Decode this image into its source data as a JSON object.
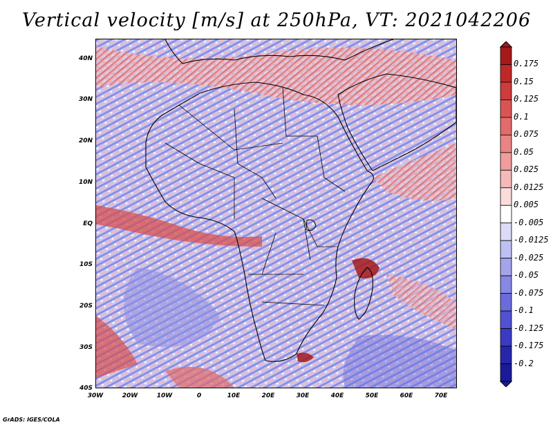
{
  "title": "Vertical velocity [m/s] at 250hPa, VT: 2021042206",
  "credit": "GrADS: IGES/COLA",
  "map": {
    "lat_labels": [
      "40N",
      "30N",
      "20N",
      "10N",
      "EQ",
      "10S",
      "20S",
      "30S",
      "40S"
    ],
    "lon_labels": [
      "30W",
      "20W",
      "10W",
      "0",
      "10E",
      "20E",
      "30E",
      "40E",
      "50E",
      "60E",
      "70E"
    ]
  },
  "colorbar": {
    "labels": [
      "0.175",
      "0.15",
      "0.125",
      "0.1",
      "0.075",
      "0.05",
      "0.025",
      "0.0125",
      "0.005",
      "-0.005",
      "-0.0125",
      "-0.025",
      "-0.05",
      "-0.075",
      "-0.1",
      "-0.125",
      "-0.175",
      "-0.2"
    ],
    "colors": [
      "#a51a1a",
      "#c02828",
      "#cf3c3c",
      "#da5454",
      "#e36b6b",
      "#ea8484",
      "#f09d9d",
      "#f5b9b9",
      "#fbdcdc",
      "#ffffff",
      "#dcdcf8",
      "#bfc0f2",
      "#a3a4ec",
      "#8788e4",
      "#6b6cdc",
      "#5052d2",
      "#3a3bc2",
      "#2626ad",
      "#1a1a9a"
    ]
  }
}
